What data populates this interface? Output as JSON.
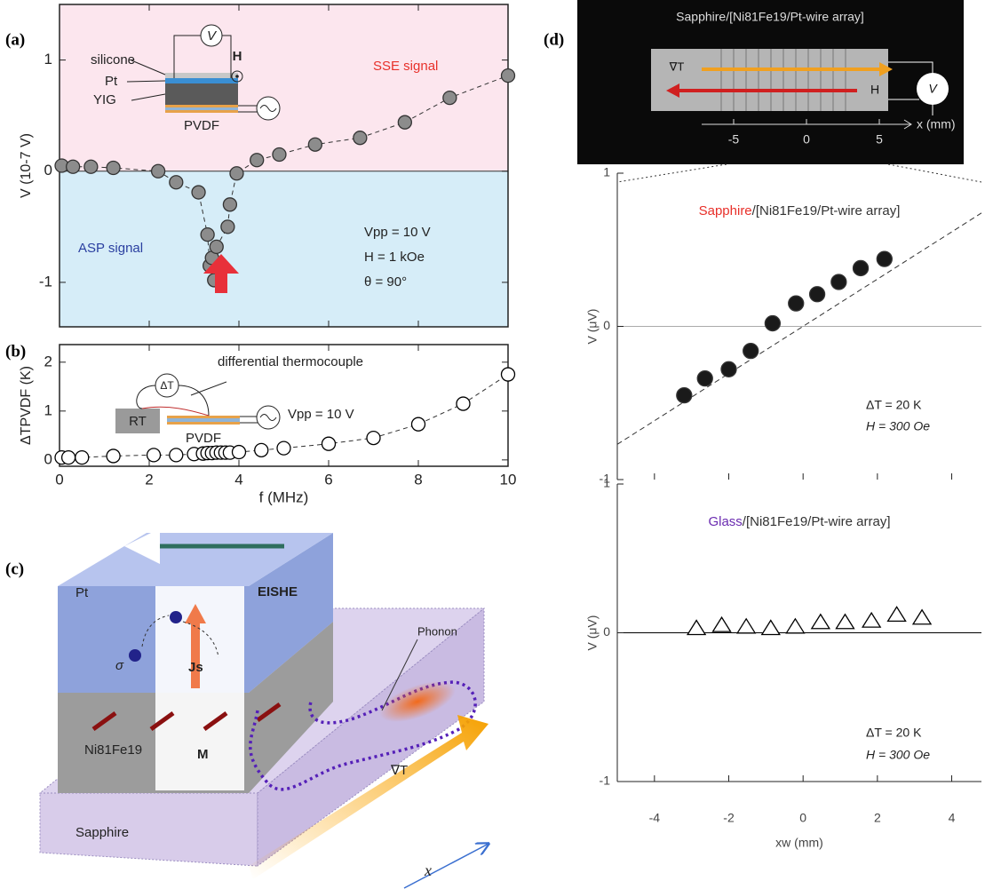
{
  "panel_labels": [
    "(a)",
    "(b)",
    "(c)",
    "(d)"
  ],
  "chart_data": [
    {
      "type": "scatter",
      "ylabel": "V (10-7 V)",
      "x": [
        0.05,
        0.3,
        0.7,
        1.2,
        2.2,
        2.6,
        3.1,
        3.3,
        3.35,
        3.4,
        3.45,
        3.5,
        3.75,
        3.8,
        3.95,
        4.4,
        4.9,
        5.7,
        6.7,
        7.7,
        8.7,
        10
      ],
      "values": [
        0.05,
        0.04,
        0.04,
        0.03,
        0,
        -0.1,
        -0.19,
        -0.57,
        -0.85,
        -0.78,
        -0.98,
        -0.68,
        -0.5,
        -0.3,
        -0.02,
        0.1,
        0.15,
        0.24,
        0.3,
        0.44,
        0.66,
        0.86
      ],
      "marker": "filled-circle",
      "color": "#8c8c8c",
      "connect": "dashed",
      "xlim": [
        0,
        10
      ],
      "xticks": [
        0,
        2,
        4,
        6,
        8,
        10
      ],
      "ylim": [
        -1.4,
        1.5
      ],
      "yticks": [
        -1,
        0,
        1
      ],
      "shading": {
        "above": "#fce6ee",
        "below": "#d6edf8"
      },
      "annotations": [
        "silicone",
        "Pt",
        "YIG",
        "PVDF",
        "V",
        "H",
        "SSE signal",
        "ASP signal",
        "Vpp = 10 V",
        "H = 1 kOe",
        "θ = 90°"
      ]
    },
    {
      "type": "scatter",
      "xlabel": "f (MHz)",
      "ylabel": "ΔTPVDF (K)",
      "x": [
        0.05,
        0.2,
        0.5,
        1.2,
        2.1,
        2.6,
        3.0,
        3.2,
        3.3,
        3.4,
        3.5,
        3.6,
        3.7,
        3.8,
        4,
        4.5,
        5,
        6,
        7,
        8,
        9,
        10
      ],
      "values": [
        0.05,
        0.05,
        0.05,
        0.08,
        0.1,
        0.1,
        0.12,
        0.13,
        0.14,
        0.14,
        0.15,
        0.15,
        0.15,
        0.15,
        0.16,
        0.2,
        0.24,
        0.33,
        0.45,
        0.73,
        1.15,
        1.75
      ],
      "marker": "open-circle",
      "color": "#000000",
      "connect": "dashed",
      "xlim": [
        0,
        10
      ],
      "xticks": [
        0,
        2,
        4,
        6,
        8,
        10
      ],
      "ylim": [
        -0.13,
        2.36
      ],
      "yticks": [
        0,
        1,
        2
      ],
      "annotations": [
        "differential thermocouple",
        "ΔT",
        "RT",
        "PVDF",
        "Vpp = 10 V"
      ]
    },
    {
      "type": "scatter",
      "ylabel": "V (μV)",
      "title": [
        "Sapphire",
        "/[Ni81Fe19/Pt-wire array]"
      ],
      "title_colors": [
        "#e8302a",
        "#333333"
      ],
      "x": [
        -3.2,
        -2.64,
        -2,
        -1.41,
        -0.82,
        -0.19,
        0.38,
        0.96,
        1.55,
        2.19
      ],
      "values": [
        -0.45,
        -0.34,
        -0.28,
        -0.16,
        0.02,
        0.15,
        0.21,
        0.29,
        0.38,
        0.44
      ],
      "marker": "filled-circle",
      "color": "#1a1a1a",
      "fit": {
        "x": [
          -5,
          4.8
        ],
        "values": [
          -0.77,
          0.74
        ]
      },
      "xlim": [
        -5,
        4.8
      ],
      "xticks": [
        -4,
        -2,
        0,
        2,
        4
      ],
      "ylim": [
        -1,
        1
      ],
      "yticks": [
        -1,
        0,
        1
      ],
      "zero_line": "#aaaaaa",
      "annotations": [
        "ΔT = 20 K",
        "H = 300 Oe"
      ]
    },
    {
      "type": "scatter",
      "xlabel": "xw (mm)",
      "ylabel": "V (μV)",
      "title": [
        "Glass",
        "/[Ni81Fe19/Pt-wire array]"
      ],
      "title_colors": [
        "#6a2bb0",
        "#333333"
      ],
      "x": [
        -2.87,
        -2.19,
        -1.53,
        -0.87,
        -0.21,
        0.47,
        1.13,
        1.84,
        2.52,
        3.2
      ],
      "values": [
        0.03,
        0.05,
        0.04,
        0.03,
        0.04,
        0.07,
        0.07,
        0.08,
        0.12,
        0.1
      ],
      "marker": "open-triangle",
      "color": "#000000",
      "xlim": [
        -5,
        4.8
      ],
      "xticks": [
        -4,
        -2,
        0,
        2,
        4
      ],
      "ylim": [
        -1,
        1
      ],
      "yticks": [
        -1,
        0,
        1
      ],
      "zero_line": "#000000",
      "annotations": [
        "ΔT = 20 K",
        "H = 300 Oe"
      ]
    }
  ],
  "diagram_c": {
    "labels": [
      "Pt",
      "EISHE",
      "σ",
      "Js",
      "Ni81Fe19",
      "M",
      "Phonon",
      "Sapphire",
      "∇T",
      "x"
    ]
  },
  "inset_d": {
    "title": "Sapphire/[Ni81Fe19/Pt-wire array]",
    "labels": [
      "∇T",
      "H",
      "V",
      "x (mm)"
    ],
    "xlim": [
      -5,
      5
    ],
    "ticks": [
      -5,
      0,
      5
    ]
  }
}
